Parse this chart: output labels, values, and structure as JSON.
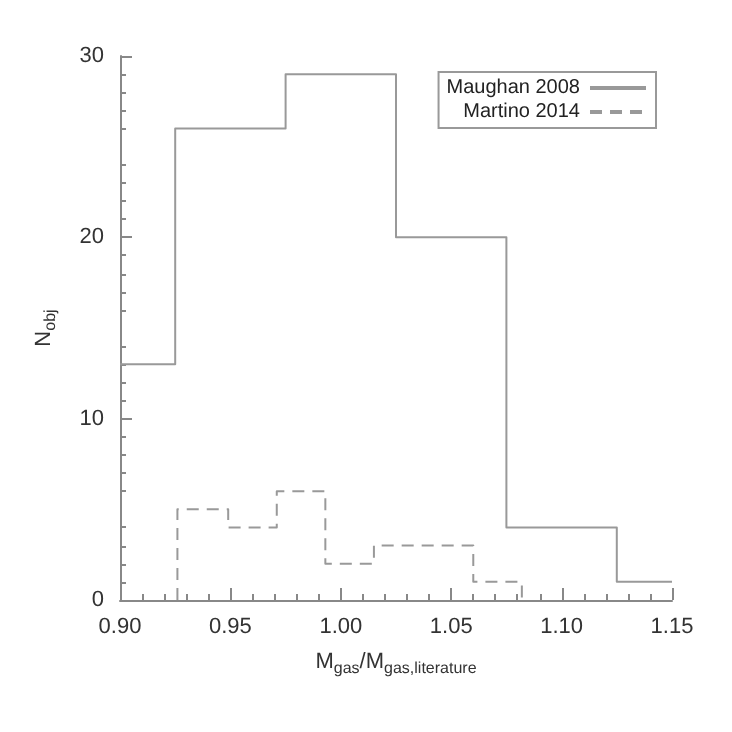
{
  "chart_data": {
    "type": "step",
    "xlabel": "M$_{gas}$/M$_{gas,literature}$",
    "ylabel": "N$_{obj}$",
    "series": [
      {
        "name": "Maughan 2008",
        "color": "#999999",
        "line_style": "solid",
        "x": [
          0.9,
          0.925,
          0.975,
          1.025,
          1.075,
          1.125,
          1.15
        ],
        "values": [
          13,
          26,
          29,
          20,
          4,
          1,
          1
        ]
      },
      {
        "name": "Martino 2014",
        "color": "#999999",
        "line_style": "dashed",
        "x": [
          0.926,
          0.926,
          0.949,
          0.971,
          0.993,
          1.015,
          1.038,
          1.06,
          1.082
        ],
        "values": [
          0,
          5,
          4,
          6,
          2,
          3,
          3,
          1,
          0
        ]
      }
    ],
    "xlim": [
      0.9,
      1.15
    ],
    "xticks": [
      {
        "value": 0.9,
        "label": "0.90"
      },
      {
        "value": 0.95,
        "label": "0.95"
      },
      {
        "value": 1.0,
        "label": "1.00"
      },
      {
        "value": 1.05,
        "label": "1.05"
      },
      {
        "value": 1.1,
        "label": "1.10"
      },
      {
        "value": 1.15,
        "label": "1.15"
      }
    ],
    "ylim": [
      0,
      30
    ],
    "yticks": [
      0,
      10,
      20,
      30
    ],
    "grid": false,
    "legend": "top right"
  }
}
